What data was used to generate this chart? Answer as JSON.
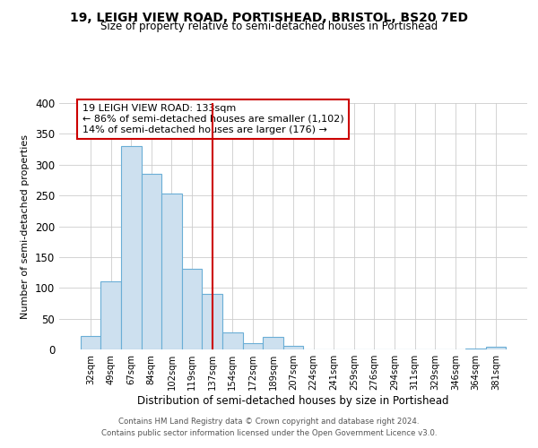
{
  "title": "19, LEIGH VIEW ROAD, PORTISHEAD, BRISTOL, BS20 7ED",
  "subtitle": "Size of property relative to semi-detached houses in Portishead",
  "bar_labels": [
    "32sqm",
    "49sqm",
    "67sqm",
    "84sqm",
    "102sqm",
    "119sqm",
    "137sqm",
    "154sqm",
    "172sqm",
    "189sqm",
    "207sqm",
    "224sqm",
    "241sqm",
    "259sqm",
    "276sqm",
    "294sqm",
    "311sqm",
    "329sqm",
    "346sqm",
    "364sqm",
    "381sqm"
  ],
  "bar_heights": [
    22,
    110,
    330,
    285,
    253,
    131,
    90,
    27,
    10,
    20,
    6,
    0,
    0,
    0,
    0,
    0,
    0,
    0,
    0,
    1,
    4
  ],
  "bar_color": "#cde0ef",
  "bar_edge_color": "#6aaed6",
  "vline_color": "#cc0000",
  "annotation_title": "19 LEIGH VIEW ROAD: 133sqm",
  "annotation_line1": "← 86% of semi-detached houses are smaller (1,102)",
  "annotation_line2": "14% of semi-detached houses are larger (176) →",
  "annotation_box_color": "#ffffff",
  "annotation_box_edge": "#cc0000",
  "xlabel": "Distribution of semi-detached houses by size in Portishead",
  "ylabel": "Number of semi-detached properties",
  "ylim": [
    0,
    400
  ],
  "yticks": [
    0,
    50,
    100,
    150,
    200,
    250,
    300,
    350,
    400
  ],
  "footer1": "Contains HM Land Registry data © Crown copyright and database right 2024.",
  "footer2": "Contains public sector information licensed under the Open Government Licence v3.0."
}
